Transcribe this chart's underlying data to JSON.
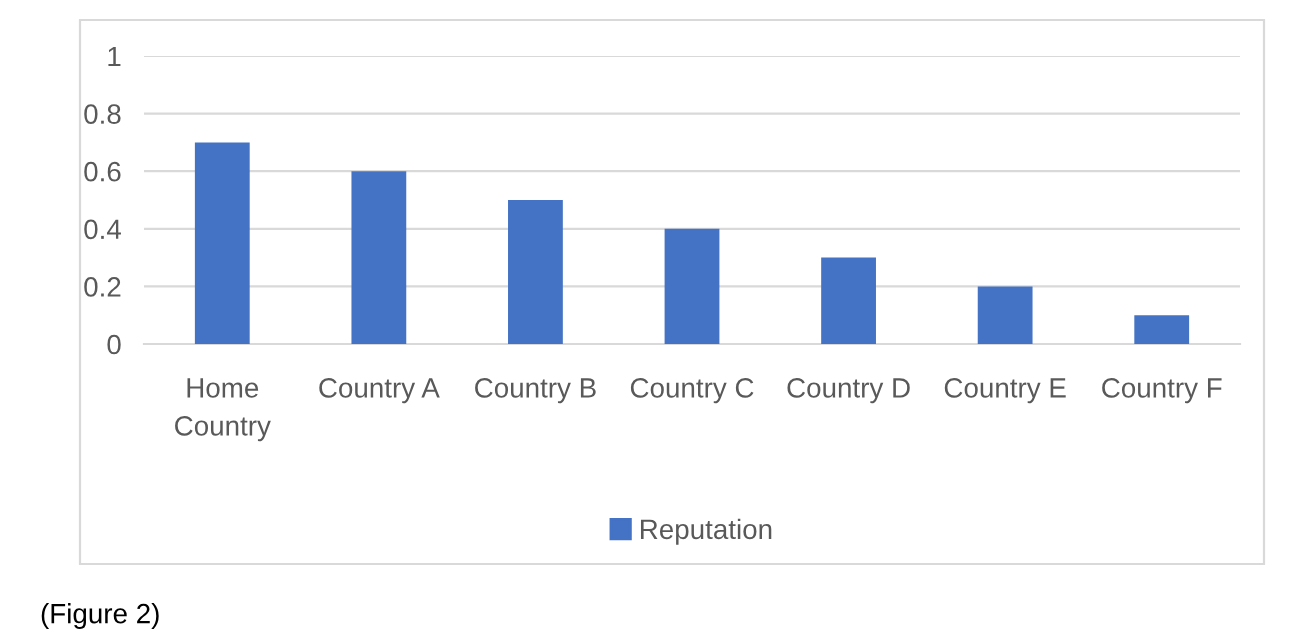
{
  "chart_data": {
    "type": "bar",
    "categories": [
      "Home\nCountry",
      "Country A",
      "Country B",
      "Country C",
      "Country D",
      "Country E",
      "Country F"
    ],
    "series": [
      {
        "name": "Reputation",
        "color": "#4472c4",
        "values": [
          0.7,
          0.6,
          0.5,
          0.4,
          0.3,
          0.2,
          0.1
        ]
      }
    ],
    "ylim": [
      0,
      1
    ],
    "yticks": [
      0,
      0.2,
      0.4,
      0.6,
      0.8,
      1
    ],
    "grid": "y",
    "legend": "bottom",
    "annotations": [
      "(Figure 2)"
    ]
  }
}
